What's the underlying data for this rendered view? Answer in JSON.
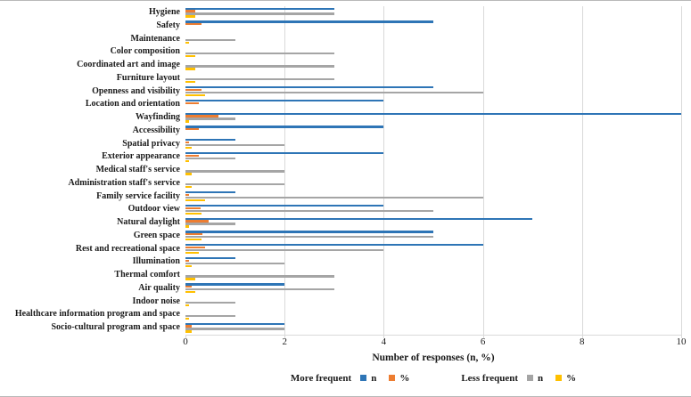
{
  "figure": {
    "border_color": "#b9b9b9",
    "background": "#ffffff"
  },
  "chart_data": {
    "type": "bar",
    "orientation": "horizontal",
    "xlabel": "Number of responses (n, %)",
    "xlim": [
      0,
      10
    ],
    "xticks": [
      0,
      2,
      4,
      6,
      8,
      10
    ],
    "grid": "vertical-light-gray",
    "gridline_color": "#d9d9d9",
    "legend_position": "bottom",
    "categories": [
      "Hygiene",
      "Safety",
      "Maintenance",
      "Color composition",
      "Coordinated art and image",
      "Furniture layout",
      "Openness and visibility",
      "Location and orientation",
      "Wayfinding",
      "Accessibility",
      "Spatial privacy",
      "Exterior appearance",
      "Medical staff's service",
      "Administration staff's service",
      "Family service facility",
      "Outdoor view",
      "Natural daylight",
      "Green space",
      "Rest and recreational space",
      "Illumination",
      "Thermal comfort",
      "Air quality",
      "Indoor noise",
      "Healthcare information program and space",
      "Socio-cultural program and space"
    ],
    "series": [
      {
        "key": "more-frequent-n",
        "name": "More frequent n",
        "color": "#2e75b6",
        "values": [
          3,
          5,
          0,
          0,
          0,
          0,
          5,
          4,
          10,
          4,
          1,
          4,
          0,
          0,
          1,
          4,
          7,
          5,
          6,
          1,
          0,
          2,
          0,
          0,
          2
        ]
      },
      {
        "key": "more-frequent-pct",
        "name": "More frequent %",
        "color": "#ed7d31",
        "values": [
          0.2,
          0.33,
          0,
          0,
          0,
          0,
          0.33,
          0.27,
          0.67,
          0.27,
          0.07,
          0.27,
          0,
          0,
          0.07,
          0.3,
          0.47,
          0.35,
          0.4,
          0.07,
          0,
          0.13,
          0,
          0,
          0.13
        ]
      },
      {
        "key": "less-frequent-n",
        "name": "Less frequent n",
        "color": "#a5a5a5",
        "values": [
          3,
          0,
          1,
          3,
          3,
          3,
          6,
          0,
          1,
          0,
          2,
          1,
          2,
          2,
          6,
          5,
          1,
          5,
          4,
          2,
          3,
          3,
          1,
          1,
          2
        ]
      },
      {
        "key": "less-frequent-pct",
        "name": "Less frequent %",
        "color": "#ffc000",
        "values": [
          0.2,
          0,
          0.07,
          0.2,
          0.2,
          0.2,
          0.4,
          0,
          0.07,
          0,
          0.13,
          0.07,
          0.13,
          0.13,
          0.4,
          0.33,
          0.07,
          0.33,
          0.27,
          0.13,
          0.2,
          0.2,
          0.07,
          0.07,
          0.13
        ]
      }
    ],
    "legend_groups": [
      {
        "label": "More frequent",
        "entries": [
          {
            "name": "n",
            "color": "#2e75b6"
          },
          {
            "name": "%",
            "color": "#ed7d31"
          }
        ]
      },
      {
        "label": "Less frequent",
        "entries": [
          {
            "name": "n",
            "color": "#a5a5a5"
          },
          {
            "name": "%",
            "color": "#ffc000"
          }
        ]
      }
    ]
  }
}
